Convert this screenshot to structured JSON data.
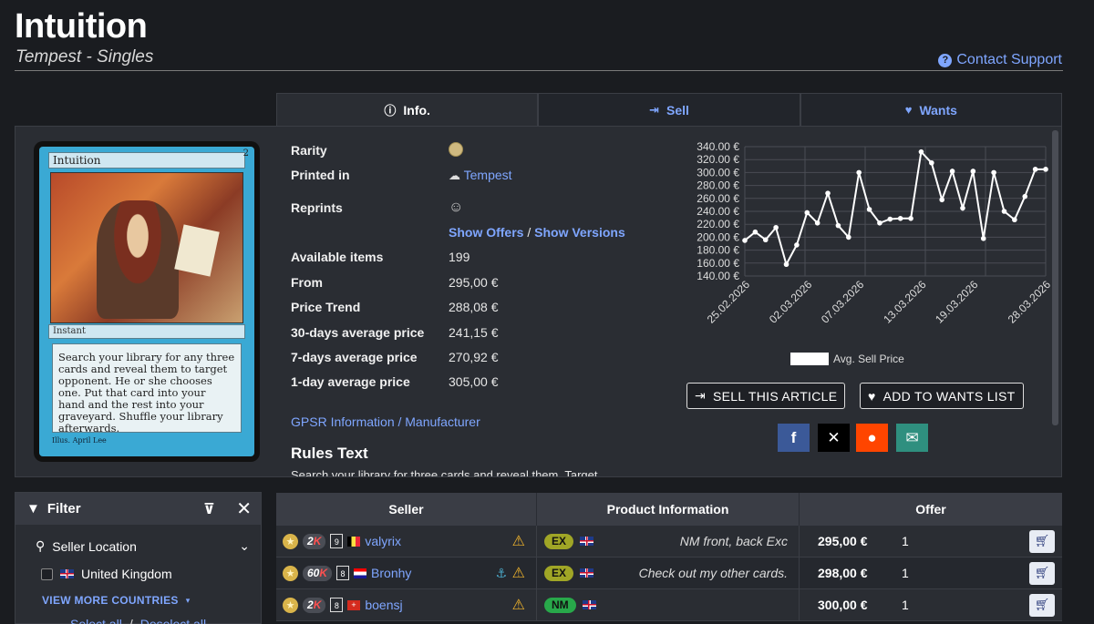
{
  "header": {
    "title": "Intuition",
    "subtitle": "Tempest - Singles",
    "support_label": "Contact Support"
  },
  "tabs": [
    {
      "label": "Info.",
      "icon": "info-icon",
      "active": true
    },
    {
      "label": "Sell",
      "icon": "sell-icon",
      "active": false
    },
    {
      "label": "Wants",
      "icon": "heart-icon",
      "active": false
    }
  ],
  "card": {
    "name": "Intuition",
    "cost": "2",
    "type": "Instant",
    "text": "Search your library for any three cards and reveal them to target opponent. He or she chooses one. Put that card into your hand and the rest into your graveyard. Shuffle your library afterwards.",
    "illus": "Illus. April Lee"
  },
  "info": {
    "rarity_label": "Rarity",
    "printed_label": "Printed in",
    "printed_value": "Tempest",
    "reprints_label": "Reprints",
    "show_offers": "Show Offers",
    "separator": "/",
    "show_versions": "Show Versions",
    "rows": [
      {
        "label": "Available items",
        "value": "199"
      },
      {
        "label": "From",
        "value": "295,00 €"
      },
      {
        "label": "Price Trend",
        "value": "288,08 €"
      },
      {
        "label": "30-days average price",
        "value": "241,15 €"
      },
      {
        "label": "7-days average price",
        "value": "270,92 €"
      },
      {
        "label": "1-day average price",
        "value": "305,00 €"
      }
    ],
    "gpsr": "GPSR Information / Manufacturer",
    "rules_title": "Rules Text",
    "rules_text": "Search your library for three cards and reveal them. Target"
  },
  "chart_data": {
    "type": "line",
    "y_ticks": [
      "340.00 €",
      "320.00 €",
      "300.00 €",
      "280.00 €",
      "260.00 €",
      "240.00 €",
      "220.00 €",
      "200.00 €",
      "180.00 €",
      "160.00 €",
      "140.00 €"
    ],
    "ylim": [
      140,
      340
    ],
    "x_ticks": [
      "25.02.2026",
      "02.03.2026",
      "07.03.2026",
      "13.03.2026",
      "19.03.2026",
      "28.03.2026"
    ],
    "series": [
      {
        "name": "Avg. Sell Price",
        "values": [
          195,
          208,
          196,
          215,
          158,
          188,
          238,
          222,
          268,
          218,
          200,
          300,
          243,
          222,
          228,
          229,
          229,
          332,
          315,
          258,
          302,
          245,
          302,
          198,
          300,
          240,
          227,
          263,
          305,
          305
        ]
      }
    ],
    "legend": "bottom"
  },
  "actions": {
    "sell_label": "SELL THIS ARTICLE",
    "wants_label": "ADD TO WANTS LIST"
  },
  "social": [
    {
      "name": "facebook-icon",
      "glyph": "f",
      "color": "#3b5998"
    },
    {
      "name": "x-icon",
      "glyph": "𝕏",
      "color": "#000000"
    },
    {
      "name": "reddit-icon",
      "glyph": "●",
      "color": "#ff4500"
    },
    {
      "name": "email-icon",
      "glyph": "✉",
      "color": "#2f8f7f"
    }
  ],
  "filter": {
    "title": "Filter",
    "seller_location": "Seller Location",
    "country": "United Kingdom",
    "view_more": "VIEW MORE COUNTRIES",
    "select_all": "Select all",
    "slash": "/",
    "deselect_all": "Deselect all"
  },
  "table": {
    "headers": [
      "Seller",
      "Product Information",
      "Offer"
    ],
    "rows": [
      {
        "sales": "2",
        "sales_k": "K",
        "days": "9",
        "flag": "be",
        "seller": "valyrix",
        "pro": false,
        "cond": "EX",
        "comment": "NM front, back Exc",
        "price": "295,00 €",
        "qty": "1"
      },
      {
        "sales": "60",
        "sales_k": "K",
        "days": "8",
        "flag": "hr",
        "seller": "Bronhy",
        "pro": true,
        "cond": "EX",
        "comment": "Check out my other cards.",
        "price": "298,00 €",
        "qty": "1"
      },
      {
        "sales": "2",
        "sales_k": "K",
        "days": "8",
        "flag": "ch",
        "seller": "boensj",
        "pro": false,
        "cond": "NM",
        "comment": "",
        "price": "300,00 €",
        "qty": "1"
      }
    ]
  }
}
